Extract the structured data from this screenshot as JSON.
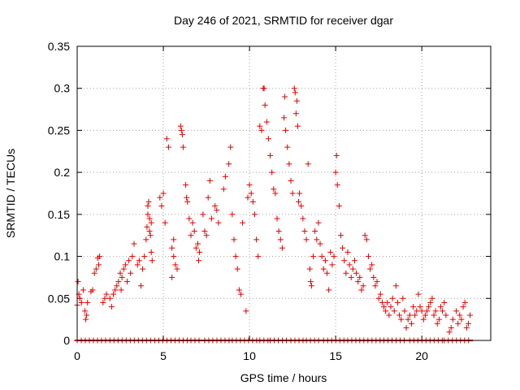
{
  "chart_data": {
    "type": "scatter",
    "title": "Day 246 of 2021, SRMTID for receiver dgar",
    "xlabel": "GPS time / hours",
    "ylabel": "SRMTID / TECUs",
    "xlim": [
      0,
      24
    ],
    "ylim": [
      0,
      0.35
    ],
    "x_ticks": [
      0,
      5,
      10,
      15,
      20
    ],
    "x_tick_labels": [
      "0",
      "5",
      "10",
      "15",
      "20"
    ],
    "y_ticks": [
      0,
      0.05,
      0.1,
      0.15,
      0.2,
      0.25,
      0.3,
      0.35
    ],
    "y_tick_labels": [
      "0",
      "0.05",
      "0.1",
      "0.15",
      "0.2",
      "0.25",
      "0.3",
      "0.35"
    ],
    "grid": true,
    "marker": "+",
    "color": "#e00000",
    "series": [
      {
        "name": "SRMTID",
        "points": [
          [
            0.0,
            0.042
          ],
          [
            0.05,
            0.07
          ],
          [
            0.1,
            0.055
          ],
          [
            0.15,
            0.05
          ],
          [
            0.25,
            0.045
          ],
          [
            0.35,
            0.06
          ],
          [
            0.45,
            0.035
          ],
          [
            0.5,
            0.025
          ],
          [
            0.55,
            0.03
          ],
          [
            0.6,
            0.045
          ],
          [
            0.8,
            0.058
          ],
          [
            0.9,
            0.06
          ],
          [
            1.0,
            0.08
          ],
          [
            1.1,
            0.085
          ],
          [
            1.2,
            0.098
          ],
          [
            1.25,
            0.09
          ],
          [
            1.3,
            0.1
          ],
          [
            1.5,
            0.045
          ],
          [
            1.6,
            0.05
          ],
          [
            1.7,
            0.055
          ],
          [
            1.9,
            0.05
          ],
          [
            2.0,
            0.04
          ],
          [
            2.1,
            0.055
          ],
          [
            2.2,
            0.06
          ],
          [
            2.3,
            0.065
          ],
          [
            2.4,
            0.07
          ],
          [
            2.5,
            0.08
          ],
          [
            2.55,
            0.06
          ],
          [
            2.6,
            0.075
          ],
          [
            2.7,
            0.085
          ],
          [
            2.8,
            0.09
          ],
          [
            2.9,
            0.07
          ],
          [
            3.0,
            0.095
          ],
          [
            3.1,
            0.08
          ],
          [
            3.2,
            0.1
          ],
          [
            3.3,
            0.115
          ],
          [
            3.5,
            0.09
          ],
          [
            3.6,
            0.095
          ],
          [
            3.7,
            0.065
          ],
          [
            3.8,
            0.085
          ],
          [
            3.9,
            0.1
          ],
          [
            4.0,
            0.12
          ],
          [
            4.05,
            0.135
          ],
          [
            4.1,
            0.15
          ],
          [
            4.15,
            0.165
          ],
          [
            4.2,
            0.145
          ],
          [
            4.25,
            0.125
          ],
          [
            4.3,
            0.105
          ],
          [
            4.35,
            0.095
          ],
          [
            4.1,
            0.16
          ],
          [
            4.2,
            0.13
          ],
          [
            4.3,
            0.14
          ],
          [
            4.8,
            0.17
          ],
          [
            4.9,
            0.16
          ],
          [
            5.0,
            0.175
          ],
          [
            5.1,
            0.14
          ],
          [
            5.2,
            0.24
          ],
          [
            5.3,
            0.23
          ],
          [
            5.5,
            0.11
          ],
          [
            5.6,
            0.1
          ],
          [
            5.5,
            0.075
          ],
          [
            5.6,
            0.12
          ],
          [
            5.7,
            0.09
          ],
          [
            5.8,
            0.085
          ],
          [
            6.0,
            0.255
          ],
          [
            6.05,
            0.25
          ],
          [
            6.1,
            0.245
          ],
          [
            6.15,
            0.23
          ],
          [
            6.3,
            0.185
          ],
          [
            6.35,
            0.17
          ],
          [
            6.4,
            0.165
          ],
          [
            6.5,
            0.145
          ],
          [
            6.6,
            0.125
          ],
          [
            6.7,
            0.14
          ],
          [
            6.8,
            0.13
          ],
          [
            6.9,
            0.11
          ],
          [
            7.0,
            0.115
          ],
          [
            7.05,
            0.095
          ],
          [
            7.1,
            0.105
          ],
          [
            7.3,
            0.15
          ],
          [
            7.4,
            0.13
          ],
          [
            7.5,
            0.125
          ],
          [
            7.6,
            0.17
          ],
          [
            7.7,
            0.19
          ],
          [
            7.8,
            0.145
          ],
          [
            8.0,
            0.16
          ],
          [
            8.1,
            0.155
          ],
          [
            8.2,
            0.14
          ],
          [
            8.5,
            0.18
          ],
          [
            8.6,
            0.195
          ],
          [
            8.8,
            0.21
          ],
          [
            8.9,
            0.23
          ],
          [
            9.0,
            0.15
          ],
          [
            9.1,
            0.12
          ],
          [
            9.2,
            0.1
          ],
          [
            9.3,
            0.085
          ],
          [
            9.4,
            0.06
          ],
          [
            9.5,
            0.055
          ],
          [
            9.6,
            0.14
          ],
          [
            9.8,
            0.035
          ],
          [
            9.9,
            0.17
          ],
          [
            10.0,
            0.185
          ],
          [
            10.1,
            0.175
          ],
          [
            10.2,
            0.165
          ],
          [
            10.3,
            0.15
          ],
          [
            10.4,
            0.12
          ],
          [
            10.5,
            0.1
          ],
          [
            10.6,
            0.255
          ],
          [
            10.7,
            0.25
          ],
          [
            10.8,
            0.3
          ],
          [
            10.85,
            0.3
          ],
          [
            10.9,
            0.28
          ],
          [
            11.0,
            0.26
          ],
          [
            11.1,
            0.24
          ],
          [
            11.2,
            0.22
          ],
          [
            11.3,
            0.2
          ],
          [
            11.4,
            0.18
          ],
          [
            11.5,
            0.175
          ],
          [
            11.6,
            0.145
          ],
          [
            11.7,
            0.13
          ],
          [
            11.8,
            0.12
          ],
          [
            11.9,
            0.11
          ],
          [
            12.0,
            0.265
          ],
          [
            12.05,
            0.29
          ],
          [
            12.1,
            0.25
          ],
          [
            12.2,
            0.23
          ],
          [
            12.3,
            0.21
          ],
          [
            12.4,
            0.19
          ],
          [
            12.5,
            0.175
          ],
          [
            12.6,
            0.3
          ],
          [
            12.65,
            0.295
          ],
          [
            12.7,
            0.27
          ],
          [
            12.75,
            0.285
          ],
          [
            12.8,
            0.255
          ],
          [
            12.85,
            0.165
          ],
          [
            12.9,
            0.175
          ],
          [
            13.0,
            0.16
          ],
          [
            13.1,
            0.145
          ],
          [
            13.2,
            0.13
          ],
          [
            13.3,
            0.12
          ],
          [
            13.4,
            0.21
          ],
          [
            13.5,
            0.085
          ],
          [
            13.55,
            0.07
          ],
          [
            13.6,
            0.065
          ],
          [
            13.7,
            0.1
          ],
          [
            13.8,
            0.13
          ],
          [
            13.9,
            0.12
          ],
          [
            14.0,
            0.14
          ],
          [
            14.1,
            0.115
          ],
          [
            14.2,
            0.1
          ],
          [
            14.3,
            0.085
          ],
          [
            14.4,
            0.095
          ],
          [
            14.5,
            0.08
          ],
          [
            14.6,
            0.06
          ],
          [
            14.7,
            0.105
          ],
          [
            14.8,
            0.09
          ],
          [
            14.9,
            0.1
          ],
          [
            15.0,
            0.2
          ],
          [
            15.05,
            0.22
          ],
          [
            15.1,
            0.185
          ],
          [
            15.2,
            0.16
          ],
          [
            15.3,
            0.125
          ],
          [
            15.4,
            0.11
          ],
          [
            15.5,
            0.095
          ],
          [
            15.6,
            0.08
          ],
          [
            15.7,
            0.105
          ],
          [
            15.8,
            0.09
          ],
          [
            15.9,
            0.075
          ],
          [
            16.0,
            0.085
          ],
          [
            16.1,
            0.095
          ],
          [
            16.2,
            0.08
          ],
          [
            16.3,
            0.07
          ],
          [
            16.4,
            0.075
          ],
          [
            16.5,
            0.06
          ],
          [
            16.6,
            0.065
          ],
          [
            16.7,
            0.125
          ],
          [
            16.8,
            0.12
          ],
          [
            16.9,
            0.1
          ],
          [
            17.0,
            0.085
          ],
          [
            17.1,
            0.09
          ],
          [
            17.2,
            0.075
          ],
          [
            17.3,
            0.065
          ],
          [
            17.4,
            0.07
          ],
          [
            17.5,
            0.05
          ],
          [
            17.6,
            0.055
          ],
          [
            17.7,
            0.045
          ],
          [
            17.8,
            0.04
          ],
          [
            17.9,
            0.035
          ],
          [
            18.0,
            0.045
          ],
          [
            18.1,
            0.03
          ],
          [
            18.2,
            0.04
          ],
          [
            18.3,
            0.05
          ],
          [
            18.4,
            0.035
          ],
          [
            18.5,
            0.065
          ],
          [
            18.6,
            0.045
          ],
          [
            18.7,
            0.03
          ],
          [
            18.8,
            0.025
          ],
          [
            18.9,
            0.05
          ],
          [
            19.0,
            0.035
          ],
          [
            19.1,
            0.015
          ],
          [
            19.2,
            0.025
          ],
          [
            19.3,
            0.03
          ],
          [
            19.4,
            0.02
          ],
          [
            19.5,
            0.04
          ],
          [
            19.6,
            0.03
          ],
          [
            19.7,
            0.035
          ],
          [
            19.8,
            0.055
          ],
          [
            19.9,
            0.04
          ],
          [
            20.0,
            0.035
          ],
          [
            20.1,
            0.025
          ],
          [
            20.2,
            0.03
          ],
          [
            20.3,
            0.035
          ],
          [
            20.4,
            0.04
          ],
          [
            20.5,
            0.045
          ],
          [
            20.6,
            0.05
          ],
          [
            20.7,
            0.03
          ],
          [
            20.8,
            0.035
          ],
          [
            20.9,
            0.02
          ],
          [
            21.0,
            0.025
          ],
          [
            21.1,
            0.04
          ],
          [
            21.2,
            0.035
          ],
          [
            21.3,
            0.045
          ],
          [
            21.4,
            0.03
          ],
          [
            21.6,
            0.01
          ],
          [
            21.7,
            0.015
          ],
          [
            21.8,
            0.025
          ],
          [
            22.0,
            0.035
          ],
          [
            22.1,
            0.02
          ],
          [
            22.2,
            0.03
          ],
          [
            22.3,
            0.025
          ],
          [
            22.4,
            0.04
          ],
          [
            22.5,
            0.045
          ],
          [
            22.6,
            0.015
          ],
          [
            22.7,
            0.02
          ],
          [
            22.8,
            0.03
          ]
        ]
      }
    ],
    "zero_runs": [
      [
        0.0,
        1.8
      ],
      [
        1.9,
        4.4
      ],
      [
        4.5,
        6.5
      ],
      [
        6.6,
        7.3
      ],
      [
        7.4,
        8.9
      ],
      [
        9.0,
        10.5
      ],
      [
        10.6,
        11.1
      ],
      [
        11.2,
        12.3
      ],
      [
        12.4,
        13.2
      ],
      [
        13.3,
        14.1
      ],
      [
        14.3,
        15.6
      ],
      [
        15.7,
        16.3
      ],
      [
        16.4,
        17.7
      ],
      [
        17.8,
        19.2
      ],
      [
        19.3,
        21.2
      ],
      [
        21.3,
        22.8
      ]
    ]
  }
}
